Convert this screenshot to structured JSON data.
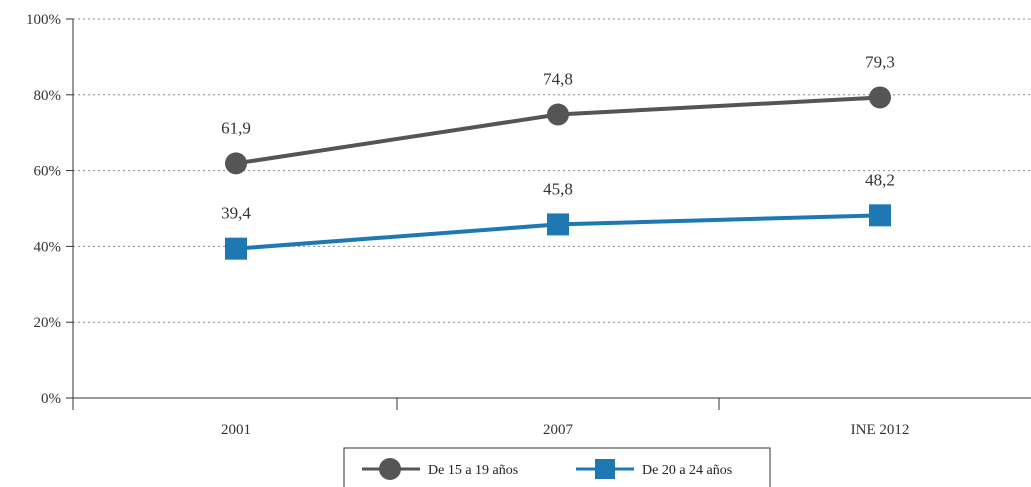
{
  "chart_data": {
    "type": "line",
    "categories": [
      "2001",
      "2007",
      "INE 2012"
    ],
    "ylim": [
      0,
      100
    ],
    "yticks": [
      "0%",
      "20%",
      "40%",
      "60%",
      "80%",
      "100%"
    ],
    "ytick_values": [
      0,
      20,
      40,
      60,
      80,
      100
    ],
    "grid": "horizontal dotted",
    "legend_position": "bottom-center",
    "series": [
      {
        "name": "De 15 a 19 años",
        "values": [
          61.9,
          74.8,
          79.3
        ],
        "labels": [
          "61,9",
          "74,8",
          "79,3"
        ],
        "color": "#555555",
        "marker": "circle"
      },
      {
        "name": "De 20 a 24 años",
        "values": [
          39.4,
          45.8,
          48.2
        ],
        "labels": [
          "39,4",
          "45,8",
          "48,2"
        ],
        "color": "#1f78b4",
        "marker": "square"
      }
    ]
  }
}
